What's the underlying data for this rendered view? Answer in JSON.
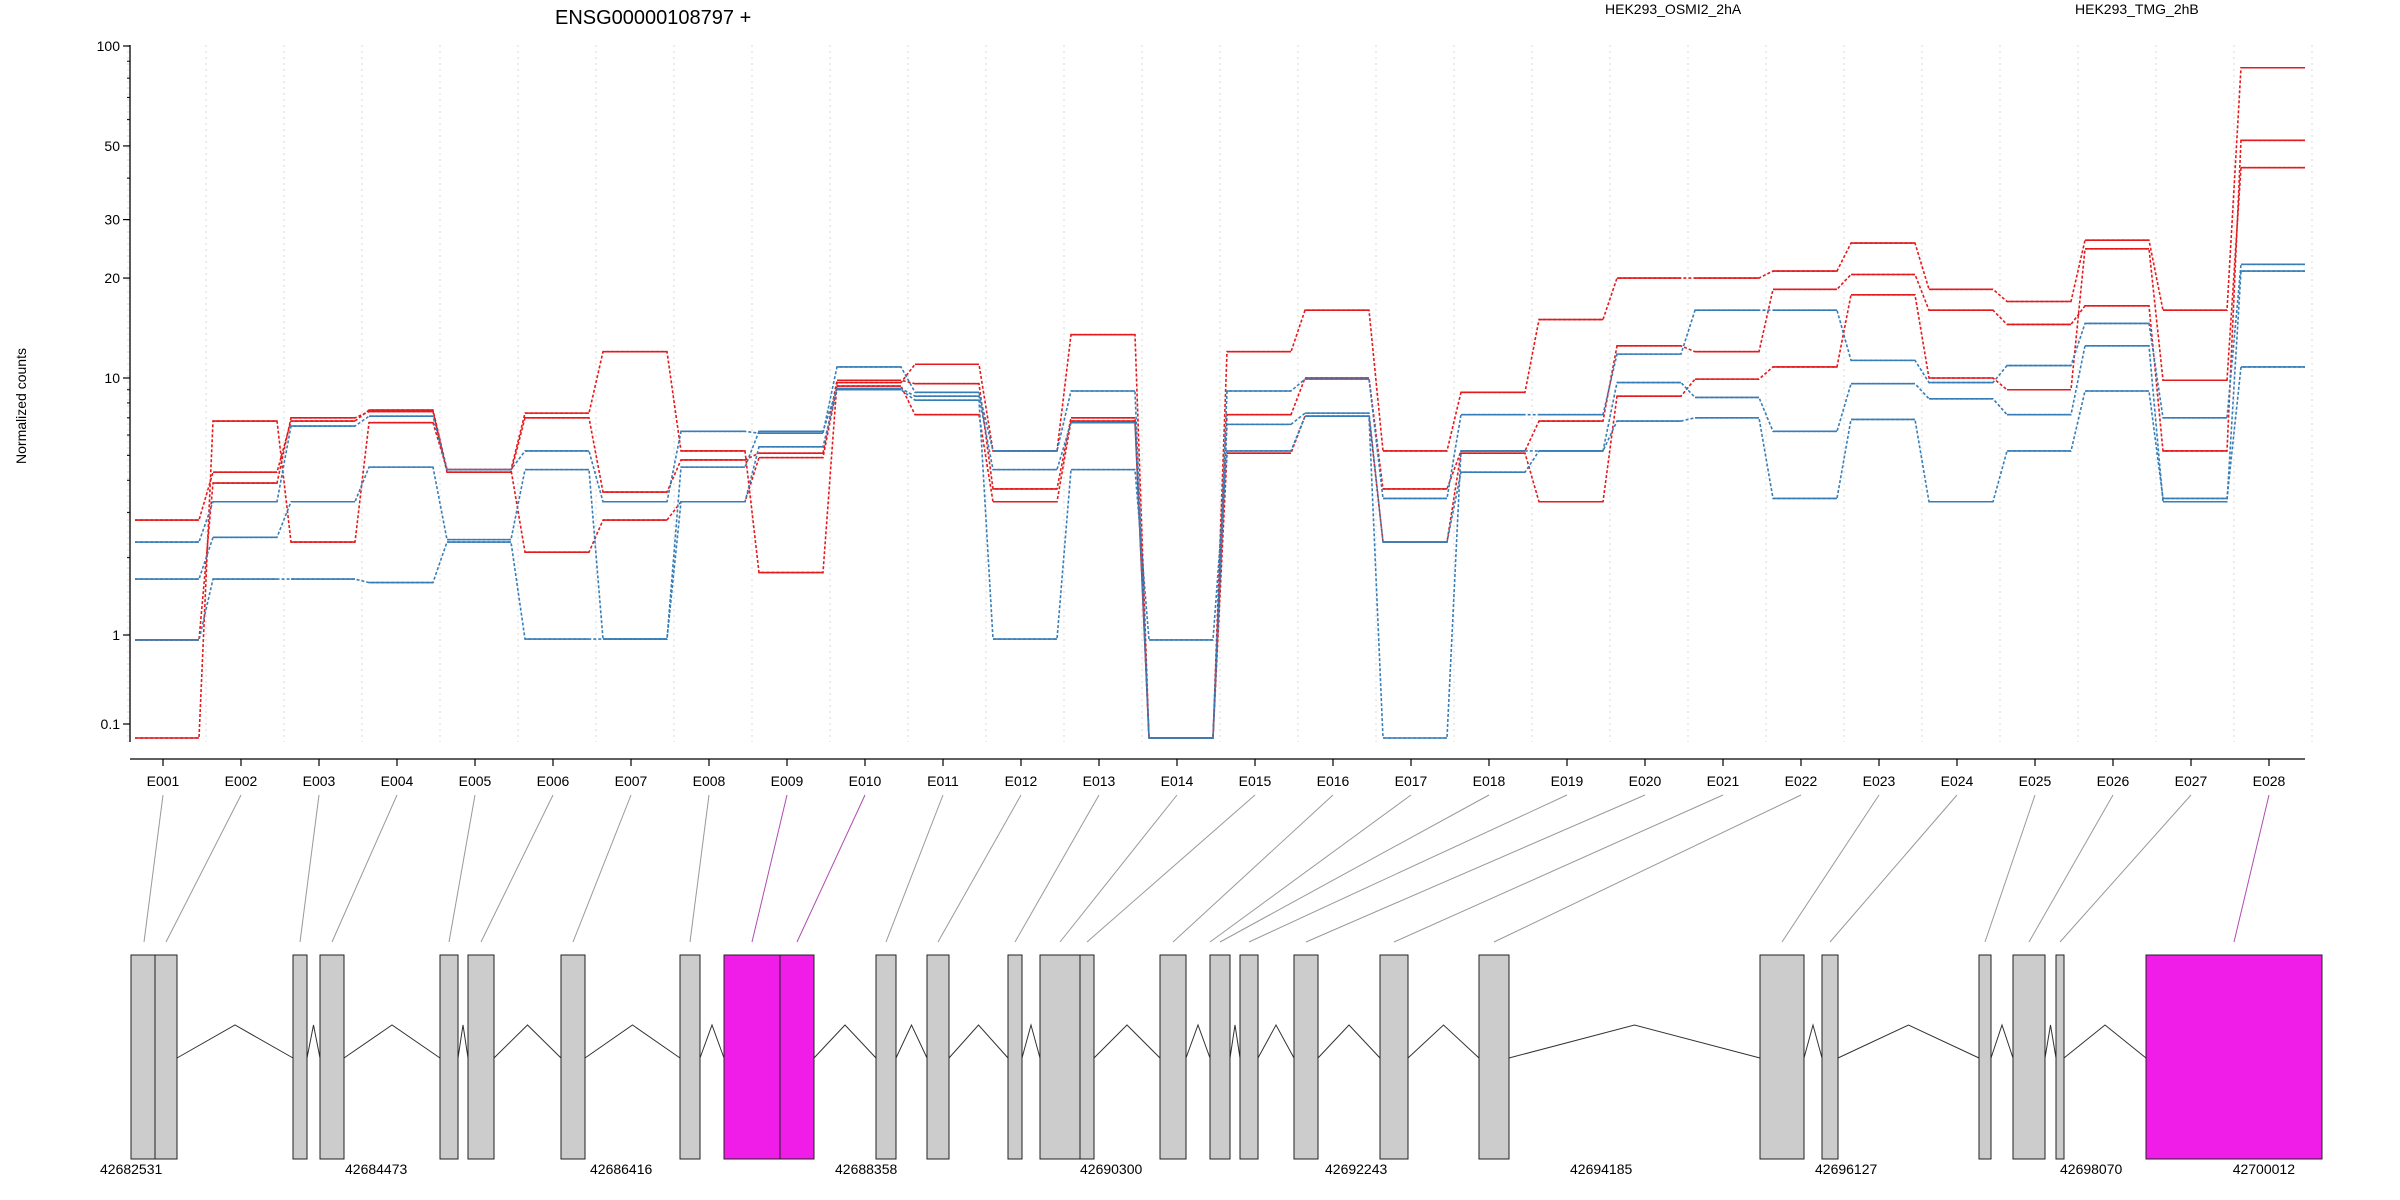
{
  "chart_data": {
    "type": "line",
    "title": "ENSG00000108797 +",
    "ylabel": "Normalized counts",
    "xlabel": "",
    "y_scale": "log",
    "ylim": [
      0.07,
      100
    ],
    "y_ticks": [
      "100",
      "50",
      "30",
      "20",
      "10",
      "1",
      "0.1"
    ],
    "y_tick_values": [
      100,
      50,
      30,
      20,
      10,
      1,
      0.1
    ],
    "grid": "vertical dotted",
    "legend_placement": "top",
    "categories": [
      "E001",
      "E002",
      "E003",
      "E004",
      "E005",
      "E006",
      "E007",
      "E008",
      "E009",
      "E010",
      "E011",
      "E012",
      "E013",
      "E014",
      "E015",
      "E016",
      "E017",
      "E018",
      "E019",
      "E020",
      "E021",
      "E022",
      "E023",
      "E024",
      "E025",
      "E026",
      "E027",
      "E028"
    ],
    "groups": [
      {
        "name": "HEK293_OSMI2_2hA",
        "color": "#e41a1c"
      },
      {
        "name": "HEK293_TMG_2hB",
        "color": "#377eb8"
      }
    ],
    "series": [
      {
        "group": 0,
        "values": [
          2.8,
          4.3,
          6.8,
          7.5,
          4.4,
          7.3,
          12,
          5.2,
          1.75,
          9.6,
          11,
          5.2,
          13.5,
          0.07,
          12,
          16,
          5.2,
          8.8,
          15,
          20,
          20,
          21,
          25.5,
          18.5,
          17,
          26,
          16,
          86
        ]
      },
      {
        "group": 0,
        "values": [
          0.88,
          3.9,
          7,
          7.4,
          4.3,
          7,
          3.6,
          4.8,
          5.1,
          9.8,
          9.5,
          3.7,
          7,
          0.07,
          7.2,
          10,
          3.7,
          5.2,
          6.8,
          12.5,
          12,
          18.5,
          20.5,
          16,
          14.5,
          16.5,
          5.2,
          52
        ]
      },
      {
        "group": 0,
        "values": [
          0.07,
          6.8,
          2.3,
          6.7,
          4.4,
          2.1,
          2.8,
          3.3,
          4.9,
          9.3,
          7.2,
          3.3,
          6.8,
          0.07,
          5.1,
          7.1,
          2.3,
          5.1,
          3.3,
          8.5,
          9.9,
          10.8,
          17.8,
          10,
          9,
          24.5,
          9.8,
          43
        ]
      },
      {
        "group": 1,
        "values": [
          2.3,
          3.3,
          6.5,
          7.1,
          4.4,
          5.2,
          3.3,
          6.2,
          6.1,
          10.8,
          8.8,
          5.2,
          8.9,
          0.07,
          8.9,
          9.9,
          3.4,
          7.2,
          7.2,
          11.8,
          16,
          16,
          11.3,
          9.6,
          10.9,
          14.6,
          7,
          22
        ]
      },
      {
        "group": 1,
        "values": [
          1.65,
          2.4,
          3.3,
          4.5,
          2.35,
          4.4,
          0.9,
          4.5,
          6.2,
          9.1,
          8.5,
          4.4,
          6.7,
          0.07,
          6.6,
          7.3,
          2.3,
          4.3,
          5.2,
          9.6,
          8.4,
          6.2,
          9.5,
          8.3,
          7.2,
          12.5,
          3.3,
          21
        ]
      },
      {
        "group": 1,
        "values": [
          0.88,
          1.65,
          1.65,
          1.6,
          2.3,
          0.9,
          0.9,
          3.3,
          5.4,
          9,
          8.2,
          0.9,
          4.4,
          0.88,
          5.2,
          7.1,
          0.07,
          5.2,
          5.2,
          6.8,
          7,
          3.4,
          6.9,
          3.3,
          5.2,
          8.9,
          3.4,
          10.8
        ]
      }
    ],
    "gene_model": {
      "start_label": "42682531",
      "end_label": "42700012",
      "coordinate_ticks": [
        "42682531",
        "42684473",
        "42686416",
        "42688358",
        "42690300",
        "42692243",
        "42694185",
        "42696127",
        "42698070",
        "42700012"
      ],
      "highlight_color": "#f01ce8",
      "exon_color": "#cccccc",
      "highlighted_exons": [
        "E009",
        "E010",
        "E028"
      ]
    }
  }
}
